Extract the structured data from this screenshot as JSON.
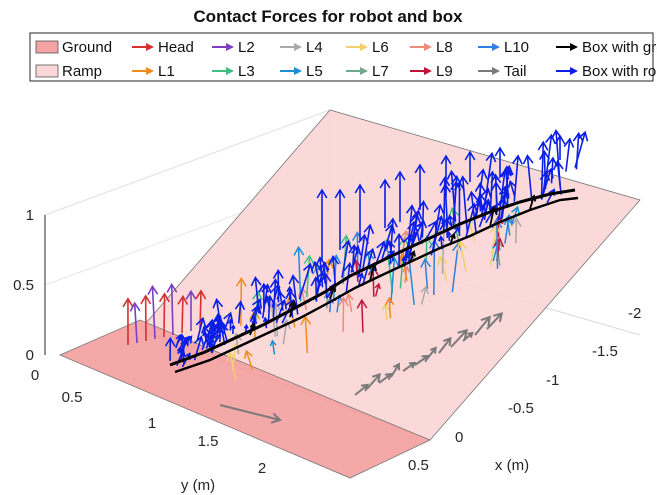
{
  "chart_data": {
    "type": "3d-quiver",
    "title": "Contact Forces for robot and box",
    "xlabel": "x (m)",
    "ylabel": "y (m)",
    "zlabel": "",
    "x_ticks": [
      "-2",
      "-1.5",
      "-1",
      "-0.5",
      "0",
      "0.5"
    ],
    "y_ticks": [
      "0",
      "0.5",
      "1",
      "1.5",
      "2"
    ],
    "z_ticks": [
      "0",
      "0.5",
      "1"
    ],
    "xlim": [
      -2.2,
      0.6
    ],
    "ylim": [
      0,
      2.4
    ],
    "zlim": [
      0,
      1
    ],
    "grid": true,
    "legend_position": "top",
    "legend": [
      {
        "label": "Ground",
        "kind": "patch",
        "color": "#f4a3a3"
      },
      {
        "label": "Ramp",
        "kind": "patch",
        "color": "#fbd6d6"
      },
      {
        "label": "Head",
        "kind": "arrow",
        "color": "#d62f2f"
      },
      {
        "label": "L1",
        "kind": "arrow",
        "color": "#f08c1a"
      },
      {
        "label": "L2",
        "kind": "arrow",
        "color": "#7b3fbf"
      },
      {
        "label": "L3",
        "kind": "arrow",
        "color": "#3fbf7f"
      },
      {
        "label": "L4",
        "kind": "arrow",
        "color": "#a9a9a9"
      },
      {
        "label": "L5",
        "kind": "arrow",
        "color": "#1a8fd6"
      },
      {
        "label": "L6",
        "kind": "arrow",
        "color": "#f2d06b"
      },
      {
        "label": "L7",
        "kind": "arrow",
        "color": "#6fa88a"
      },
      {
        "label": "L8",
        "kind": "arrow",
        "color": "#f08a7a"
      },
      {
        "label": "L9",
        "kind": "arrow",
        "color": "#c0123a"
      },
      {
        "label": "L10",
        "kind": "arrow",
        "color": "#2f7fe0"
      },
      {
        "label": "Tail",
        "kind": "arrow",
        "color": "#7a7a7a"
      },
      {
        "label": "Box with ground",
        "kind": "arrow",
        "color": "#000000"
      },
      {
        "label": "Box with robot",
        "kind": "arrow",
        "color": "#0a1ee6"
      }
    ]
  }
}
